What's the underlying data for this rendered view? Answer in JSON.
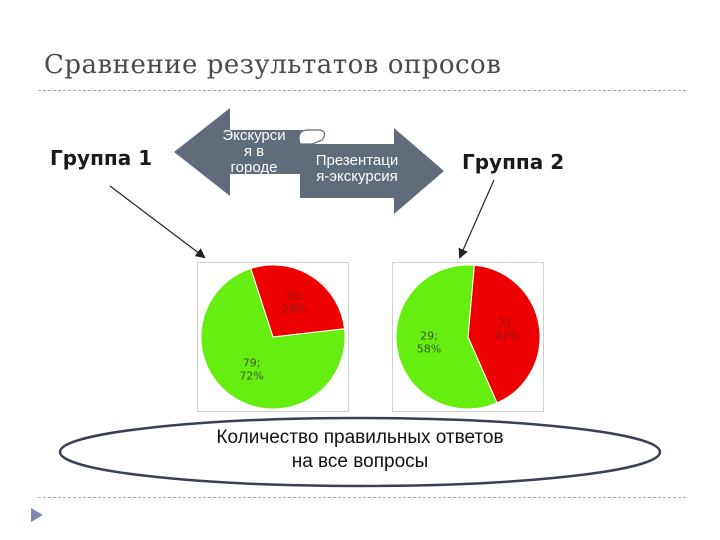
{
  "slide": {
    "title": "Сравнение результатов опросов",
    "group1_label": "Группа 1",
    "group2_label": "Группа 2",
    "left_arrow_label": "Экскурси\nя в\nгороде",
    "right_arrow_label": "Презентаци\nя-экскурсия",
    "caption_line1": "Количество правильных ответов",
    "caption_line2": "на все вопросы"
  },
  "colors": {
    "correct": "#66ee11",
    "incorrect": "#ee0000",
    "arrow_fill": "#606b7c",
    "arrow_text": "#ffffff",
    "slice_label_red": "#8a1a1a",
    "slice_label_green": "#3a5a2a"
  },
  "chart_data": [
    {
      "type": "pie",
      "slices": [
        {
          "value": 31,
          "percent": 28,
          "label": "31;\n28%",
          "color": "#ee0000"
        },
        {
          "value": 79,
          "percent": 72,
          "label": "79;\n72%",
          "color": "#66ee11"
        }
      ]
    },
    {
      "type": "pie",
      "slices": [
        {
          "value": 21,
          "percent": 42,
          "label": "21;\n42%",
          "color": "#ee0000"
        },
        {
          "value": 29,
          "percent": 58,
          "label": "29;\n58%",
          "color": "#66ee11"
        }
      ]
    }
  ]
}
